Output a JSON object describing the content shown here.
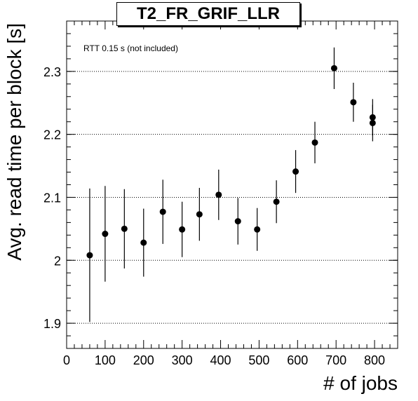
{
  "chart_data": {
    "type": "scatter",
    "title": "T2_FR_GRIF_LLR",
    "xlabel": "# of jobs",
    "ylabel": "Avg. read time per block [s]",
    "annotation": "RTT 0.15 s (not included)",
    "xlim": [
      0,
      860
    ],
    "ylim": [
      1.86,
      2.38
    ],
    "xticks": [
      0,
      100,
      200,
      300,
      400,
      500,
      600,
      700,
      800
    ],
    "yticks": [
      1.9,
      2,
      2.1,
      2.2,
      2.3
    ],
    "ytick_labels": [
      "1.9",
      "2",
      "2.1",
      "2.2",
      "2.3"
    ],
    "grid": "horizontal dotted",
    "marker_color": "#000000",
    "series": [
      {
        "points": [
          {
            "x": 60,
            "y": 2.008,
            "err_lo": 0.106,
            "err_hi": 0.106
          },
          {
            "x": 100,
            "y": 2.042,
            "err_lo": 0.076,
            "err_hi": 0.076
          },
          {
            "x": 150,
            "y": 2.05,
            "err_lo": 0.063,
            "err_hi": 0.063
          },
          {
            "x": 200,
            "y": 2.028,
            "err_lo": 0.054,
            "err_hi": 0.054
          },
          {
            "x": 250,
            "y": 2.077,
            "err_lo": 0.051,
            "err_hi": 0.051
          },
          {
            "x": 300,
            "y": 2.049,
            "err_lo": 0.044,
            "err_hi": 0.044
          },
          {
            "x": 345,
            "y": 2.073,
            "err_lo": 0.042,
            "err_hi": 0.042
          },
          {
            "x": 395,
            "y": 2.104,
            "err_lo": 0.04,
            "err_hi": 0.04
          },
          {
            "x": 445,
            "y": 2.062,
            "err_lo": 0.037,
            "err_hi": 0.037
          },
          {
            "x": 495,
            "y": 2.049,
            "err_lo": 0.034,
            "err_hi": 0.034
          },
          {
            "x": 545,
            "y": 2.093,
            "err_lo": 0.034,
            "err_hi": 0.034
          },
          {
            "x": 595,
            "y": 2.141,
            "err_lo": 0.034,
            "err_hi": 0.034
          },
          {
            "x": 645,
            "y": 2.187,
            "err_lo": 0.033,
            "err_hi": 0.033
          },
          {
            "x": 695,
            "y": 2.305,
            "err_lo": 0.033,
            "err_hi": 0.033
          },
          {
            "x": 745,
            "y": 2.251,
            "err_lo": 0.031,
            "err_hi": 0.031
          },
          {
            "x": 795,
            "y": 2.227,
            "err_lo": 0.029,
            "err_hi": 0.029
          },
          {
            "x": 795,
            "y": 2.218,
            "err_lo": 0.029,
            "err_hi": 0.029
          }
        ]
      }
    ]
  }
}
